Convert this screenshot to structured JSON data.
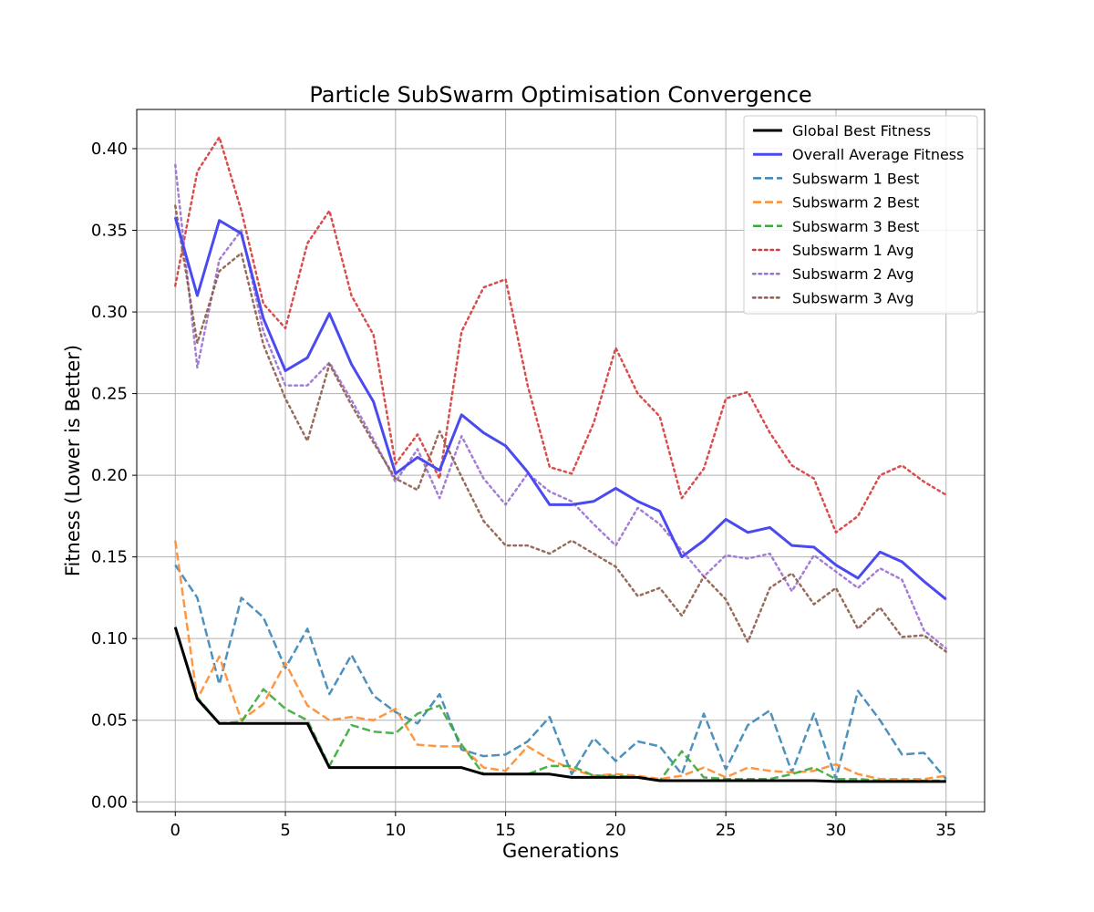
{
  "chart_data": {
    "type": "line",
    "title": "Particle SubSwarm Optimisation Convergence",
    "xlabel": "Generations",
    "ylabel": "Fitness (Lower is Better)",
    "xlim": [
      -1.75,
      36.75
    ],
    "ylim": [
      -0.006,
      0.424
    ],
    "xticks": [
      0,
      5,
      10,
      15,
      20,
      25,
      30,
      35
    ],
    "yticks": [
      0.0,
      0.05,
      0.1,
      0.15,
      0.2,
      0.25,
      0.3,
      0.35,
      0.4
    ],
    "ytick_labels": [
      "0.00",
      "0.05",
      "0.10",
      "0.15",
      "0.20",
      "0.25",
      "0.30",
      "0.35",
      "0.40"
    ],
    "grid": true,
    "legend_position": "top-right",
    "x": [
      0,
      1,
      2,
      3,
      4,
      5,
      6,
      7,
      8,
      9,
      10,
      11,
      12,
      13,
      14,
      15,
      16,
      17,
      18,
      19,
      20,
      21,
      22,
      23,
      24,
      25,
      26,
      27,
      28,
      29,
      30,
      31,
      32,
      33,
      34,
      35
    ],
    "series": [
      {
        "name": "Global Best Fitness",
        "color": "#000000",
        "style": "solid",
        "width": 3,
        "values": [
          0.107,
          0.063,
          0.048,
          0.048,
          0.048,
          0.048,
          0.048,
          0.021,
          0.021,
          0.021,
          0.021,
          0.021,
          0.021,
          0.021,
          0.017,
          0.017,
          0.017,
          0.017,
          0.015,
          0.015,
          0.015,
          0.015,
          0.013,
          0.013,
          0.013,
          0.013,
          0.013,
          0.013,
          0.013,
          0.013,
          0.0125,
          0.0125,
          0.0125,
          0.0125,
          0.0125,
          0.0125
        ]
      },
      {
        "name": "Overall Average Fitness",
        "color": "#4a4af0",
        "style": "solid",
        "width": 3,
        "values": [
          0.358,
          0.31,
          0.356,
          0.348,
          0.296,
          0.264,
          0.272,
          0.299,
          0.268,
          0.245,
          0.201,
          0.211,
          0.203,
          0.237,
          0.226,
          0.218,
          0.202,
          0.182,
          0.182,
          0.184,
          0.192,
          0.184,
          0.178,
          0.15,
          0.16,
          0.173,
          0.165,
          0.168,
          0.157,
          0.156,
          0.145,
          0.137,
          0.153,
          0.147,
          0.135,
          0.124
        ]
      },
      {
        "name": "Subswarm 1 Best",
        "color": "#3a85b5",
        "style": "dashed",
        "width": 2.5,
        "values": [
          0.145,
          0.125,
          0.072,
          0.125,
          0.113,
          0.082,
          0.106,
          0.066,
          0.09,
          0.065,
          0.055,
          0.048,
          0.066,
          0.032,
          0.028,
          0.029,
          0.037,
          0.052,
          0.017,
          0.039,
          0.025,
          0.037,
          0.034,
          0.017,
          0.054,
          0.02,
          0.047,
          0.056,
          0.018,
          0.054,
          0.014,
          0.068,
          0.05,
          0.029,
          0.03,
          0.014
        ]
      },
      {
        "name": "Subswarm 2 Best",
        "color": "#ff8c2e",
        "style": "dashed",
        "width": 2.5,
        "values": [
          0.16,
          0.063,
          0.089,
          0.05,
          0.06,
          0.085,
          0.059,
          0.05,
          0.052,
          0.05,
          0.057,
          0.035,
          0.034,
          0.034,
          0.021,
          0.019,
          0.034,
          0.026,
          0.02,
          0.016,
          0.017,
          0.016,
          0.014,
          0.016,
          0.021,
          0.015,
          0.021,
          0.019,
          0.018,
          0.019,
          0.023,
          0.017,
          0.014,
          0.014,
          0.014,
          0.016
        ]
      },
      {
        "name": "Subswarm 3 Best",
        "color": "#3aaa3a",
        "style": "dashed",
        "width": 2.5,
        "values": [
          0.107,
          0.064,
          0.048,
          0.049,
          0.069,
          0.057,
          0.05,
          0.022,
          0.047,
          0.043,
          0.042,
          0.054,
          0.059,
          0.035,
          0.017,
          0.017,
          0.017,
          0.022,
          0.022,
          0.016,
          0.016,
          0.015,
          0.013,
          0.031,
          0.015,
          0.014,
          0.014,
          0.014,
          0.017,
          0.021,
          0.014,
          0.014,
          0.013,
          0.013,
          0.013,
          0.013
        ]
      },
      {
        "name": "Subswarm 1 Avg",
        "color": "#d63a3a",
        "style": "dotted",
        "width": 2.5,
        "values": [
          0.316,
          0.386,
          0.407,
          0.362,
          0.305,
          0.29,
          0.342,
          0.362,
          0.31,
          0.286,
          0.207,
          0.225,
          0.198,
          0.288,
          0.315,
          0.32,
          0.255,
          0.205,
          0.201,
          0.232,
          0.278,
          0.25,
          0.236,
          0.186,
          0.204,
          0.247,
          0.251,
          0.226,
          0.206,
          0.198,
          0.165,
          0.175,
          0.2,
          0.206,
          0.196,
          0.188
        ]
      },
      {
        "name": "Subswarm 2 Avg",
        "color": "#9b6fd0",
        "style": "dotted",
        "width": 2.5,
        "values": [
          0.39,
          0.266,
          0.332,
          0.35,
          0.288,
          0.255,
          0.255,
          0.269,
          0.246,
          0.222,
          0.196,
          0.216,
          0.186,
          0.224,
          0.198,
          0.182,
          0.201,
          0.19,
          0.184,
          0.17,
          0.157,
          0.18,
          0.17,
          0.154,
          0.138,
          0.151,
          0.149,
          0.152,
          0.129,
          0.151,
          0.141,
          0.131,
          0.143,
          0.136,
          0.105,
          0.094
        ]
      },
      {
        "name": "Subswarm 3 Avg",
        "color": "#8c5c4a",
        "style": "dotted",
        "width": 2.5,
        "values": [
          0.365,
          0.281,
          0.325,
          0.336,
          0.28,
          0.247,
          0.221,
          0.268,
          0.243,
          0.22,
          0.198,
          0.191,
          0.227,
          0.199,
          0.172,
          0.157,
          0.157,
          0.152,
          0.16,
          0.152,
          0.144,
          0.126,
          0.131,
          0.114,
          0.138,
          0.124,
          0.098,
          0.131,
          0.14,
          0.121,
          0.131,
          0.106,
          0.119,
          0.101,
          0.102,
          0.092
        ]
      }
    ]
  }
}
